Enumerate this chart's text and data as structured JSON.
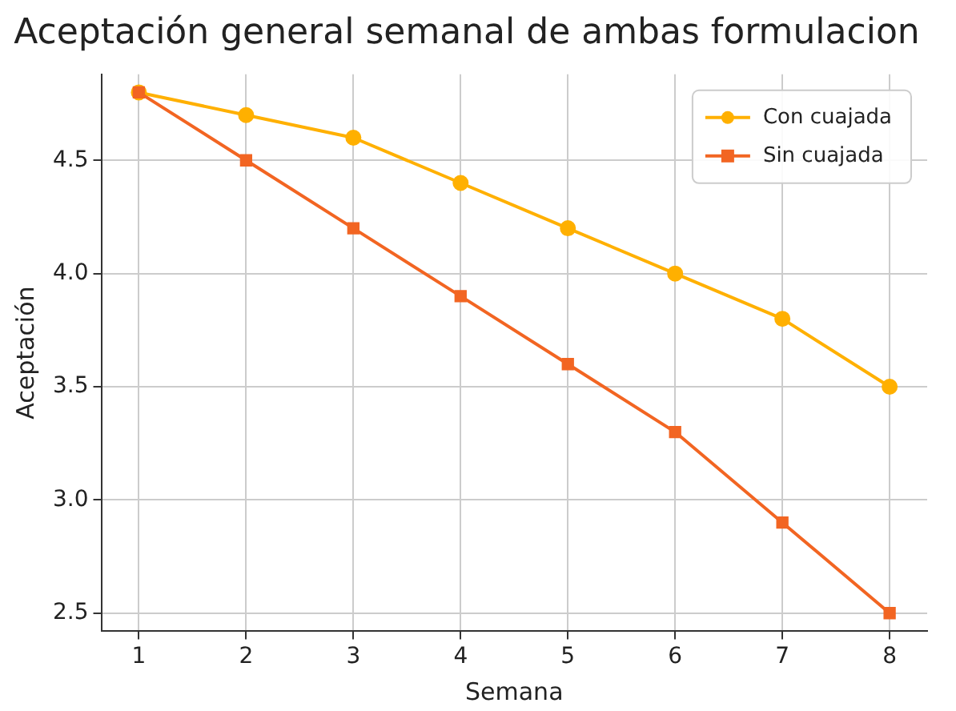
{
  "chart_data": {
    "type": "line",
    "title": "Aceptación general semanal de ambas formulacion",
    "xlabel": "Semana",
    "ylabel": "Aceptación",
    "x": [
      1,
      2,
      3,
      4,
      5,
      6,
      7,
      8
    ],
    "series": [
      {
        "name": "Con cuajada",
        "color": "#ffb000",
        "marker": "circle",
        "values": [
          4.8,
          4.7,
          4.6,
          4.4,
          4.2,
          4.0,
          3.8,
          3.5
        ]
      },
      {
        "name": "Sin cuajada",
        "color": "#f26522",
        "marker": "square",
        "values": [
          4.8,
          4.5,
          4.2,
          3.9,
          3.6,
          3.3,
          2.9,
          2.5
        ]
      }
    ],
    "xlim": [
      0.65,
      8.35
    ],
    "xticks": [
      1,
      2,
      3,
      4,
      5,
      6,
      7,
      8
    ],
    "ylim": [
      2.42,
      4.88
    ],
    "yticks": [
      {
        "value": 2.5,
        "label": "2.5"
      },
      {
        "value": 3.0,
        "label": "3.0"
      },
      {
        "value": 3.5,
        "label": "3.5"
      },
      {
        "value": 4.0,
        "label": "4.0"
      },
      {
        "value": 4.5,
        "label": "4.5"
      }
    ],
    "grid": true,
    "legend": "top right",
    "line_style": "solid"
  }
}
